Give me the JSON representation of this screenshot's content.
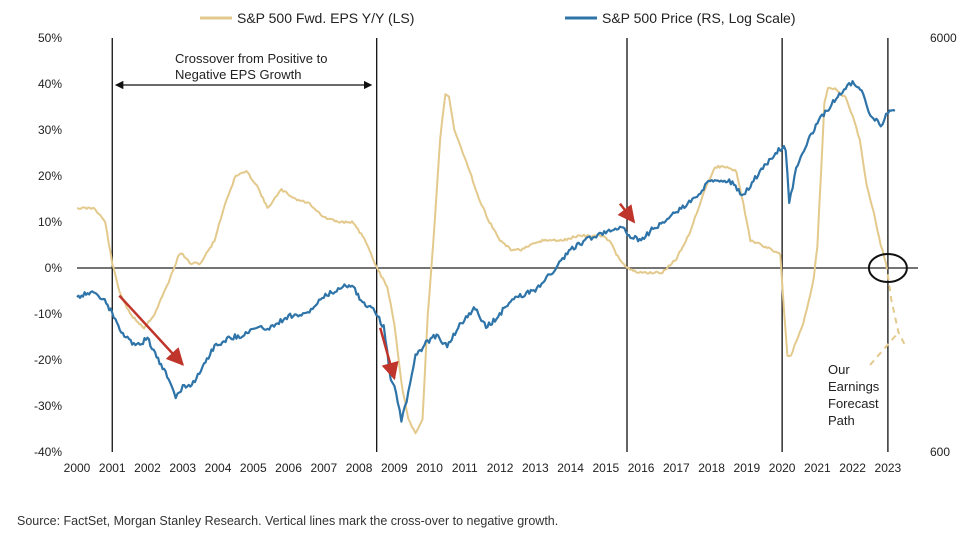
{
  "chart_data": {
    "type": "line",
    "left_axis": {
      "ylim": [
        -40,
        50
      ],
      "tick_values": [
        50,
        40,
        30,
        20,
        10,
        0,
        -10,
        -20,
        -30,
        -40
      ],
      "tick_labels": [
        "50%",
        "40%",
        "30%",
        "20%",
        "10%",
        "0%",
        "-10%",
        "-20%",
        "-30%",
        "-40%"
      ]
    },
    "right_axis": {
      "scale": "log",
      "ylim": [
        600,
        6000
      ],
      "tick_values": [
        6000,
        600
      ],
      "tick_labels": [
        "6000",
        "600"
      ]
    },
    "x_axis": {
      "xlim": [
        2000,
        2023.4
      ],
      "tick_values": [
        2000,
        2001,
        2002,
        2003,
        2004,
        2005,
        2006,
        2007,
        2008,
        2009,
        2010,
        2011,
        2012,
        2013,
        2014,
        2015,
        2016,
        2017,
        2018,
        2019,
        2020,
        2021,
        2022,
        2023
      ],
      "tick_labels": [
        "2000",
        "2001",
        "2002",
        "2003",
        "2004",
        "2005",
        "2006",
        "2007",
        "2008",
        "2009",
        "2010",
        "2011",
        "2012",
        "2013",
        "2014",
        "2015",
        "2016",
        "2017",
        "2018",
        "2019",
        "2020",
        "2021",
        "2022",
        "2023"
      ]
    },
    "series": [
      {
        "name": "S&P 500 Fwd. EPS Y/Y (LS)",
        "axis": "left",
        "color": "#E3C98C",
        "x": [
          2000,
          2000.5,
          2000.8,
          2001.0,
          2001.2,
          2001.5,
          2001.9,
          2002.2,
          2002.6,
          2002.9,
          2003.0,
          2003.2,
          2003.5,
          2003.9,
          2004.2,
          2004.5,
          2004.8,
          2005.1,
          2005.4,
          2005.8,
          2006.2,
          2006.6,
          2007.0,
          2007.4,
          2007.8,
          2008.1,
          2008.3,
          2008.5,
          2008.8,
          2009.0,
          2009.2,
          2009.4,
          2009.6,
          2009.8,
          2009.95,
          2010.1,
          2010.3,
          2010.45,
          2010.55,
          2010.7,
          2010.9,
          2011.1,
          2011.4,
          2011.7,
          2012.0,
          2012.3,
          2012.6,
          2012.9,
          2013.2,
          2013.5,
          2013.8,
          2014.2,
          2014.6,
          2014.9,
          2015.1,
          2015.3,
          2015.6,
          2015.9,
          2016.3,
          2016.6,
          2017.0,
          2017.4,
          2017.8,
          2018.1,
          2018.4,
          2018.7,
          2018.9,
          2019.1,
          2019.4,
          2019.7,
          2019.95,
          2020.05,
          2020.15,
          2020.25,
          2020.4,
          2020.6,
          2020.8,
          2020.9,
          2021.0,
          2021.1,
          2021.2,
          2021.3,
          2021.5,
          2021.8,
          2022.0,
          2022.2,
          2022.4,
          2022.6,
          2022.8,
          2022.95
        ],
        "values": [
          13,
          13,
          10,
          1,
          -5,
          -10,
          -13,
          -10,
          -3,
          3,
          3,
          1,
          1,
          6,
          14,
          20,
          21,
          18,
          13,
          17,
          15,
          14,
          11,
          10,
          10,
          7,
          4,
          0,
          -4,
          -12,
          -25,
          -33,
          -36,
          -33,
          -10,
          5,
          28,
          38,
          37,
          30,
          26,
          22,
          15,
          10,
          6,
          4,
          4,
          5,
          6,
          6,
          6,
          7,
          7,
          7,
          6,
          3,
          0,
          -1,
          -1,
          -1,
          2,
          8,
          17,
          22,
          22,
          21,
          14,
          6,
          5,
          4,
          3,
          -9,
          -19,
          -19,
          -16,
          -12,
          -6,
          -2,
          5,
          20,
          36,
          39,
          39,
          37,
          33,
          28,
          18,
          12,
          5,
          1
        ]
      },
      {
        "name": "S&P 500 Price (RS, Log Scale)",
        "axis": "right",
        "color": "#2E74A8",
        "x": [
          2000,
          2000.3,
          2000.7,
          2001.0,
          2001.3,
          2001.7,
          2002.0,
          2002.3,
          2002.6,
          2002.8,
          2003.0,
          2003.3,
          2003.6,
          2003.9,
          2004.3,
          2004.7,
          2005.0,
          2005.5,
          2006.0,
          2006.5,
          2007.0,
          2007.5,
          2007.8,
          2008.1,
          2008.4,
          2008.7,
          2008.9,
          2009.0,
          2009.2,
          2009.4,
          2009.6,
          2009.9,
          2010.2,
          2010.5,
          2010.9,
          2011.3,
          2011.6,
          2011.9,
          2012.3,
          2012.7,
          2013.0,
          2013.5,
          2014.0,
          2014.5,
          2015.0,
          2015.4,
          2015.7,
          2016.0,
          2016.3,
          2016.7,
          2017.0,
          2017.5,
          2018.0,
          2018.5,
          2018.9,
          2019.1,
          2019.5,
          2019.9,
          2020.1,
          2020.2,
          2020.4,
          2020.7,
          2021.0,
          2021.4,
          2021.8,
          2022.0,
          2022.3,
          2022.5,
          2022.8,
          2023.0,
          2023.2
        ],
        "values": [
          1420,
          1460,
          1420,
          1300,
          1150,
          1080,
          1130,
          1000,
          900,
          820,
          860,
          880,
          980,
          1080,
          1130,
          1150,
          1190,
          1200,
          1280,
          1290,
          1420,
          1500,
          1530,
          1370,
          1340,
          1200,
          900,
          860,
          720,
          830,
          1020,
          1100,
          1150,
          1080,
          1230,
          1340,
          1200,
          1260,
          1400,
          1440,
          1480,
          1640,
          1850,
          1960,
          2050,
          2100,
          2000,
          1930,
          2070,
          2170,
          2280,
          2450,
          2730,
          2720,
          2500,
          2650,
          2950,
          3230,
          3250,
          2400,
          2900,
          3350,
          3750,
          4150,
          4550,
          4700,
          4400,
          3900,
          3700,
          3950,
          4000
        ]
      }
    ],
    "forecast_path": {
      "axis": "left",
      "x": [
        2022.95,
        2023.1,
        2023.3,
        2023.5
      ],
      "values": [
        1,
        -7,
        -14,
        -17
      ]
    },
    "vertical_lines": [
      2001.0,
      2008.5,
      2015.6,
      2020.0,
      2023.0
    ],
    "annotations": [
      {
        "text_lines": [
          "Crossover from Positive to",
          "Negative EPS Growth"
        ],
        "arrow_from": 2001.1,
        "arrow_to": 2008.35
      },
      {
        "text_lines": [
          "Our",
          "Earnings",
          "Forecast",
          "Path"
        ]
      }
    ],
    "red_arrows": [
      {
        "from": [
          2001.2,
          -6
        ],
        "to": [
          2003.0,
          -21
        ]
      },
      {
        "from": [
          2008.6,
          -13
        ],
        "to": [
          2009.0,
          -24
        ]
      },
      {
        "from": [
          2015.4,
          14
        ],
        "to": [
          2015.8,
          10
        ]
      }
    ],
    "circle_marker": {
      "x": 2023.0,
      "y": 0
    },
    "grid": false,
    "legend_placement": "top"
  },
  "source": "Source: FactSet, Morgan Stanley Research. Vertical lines mark the cross-over to negative growth."
}
